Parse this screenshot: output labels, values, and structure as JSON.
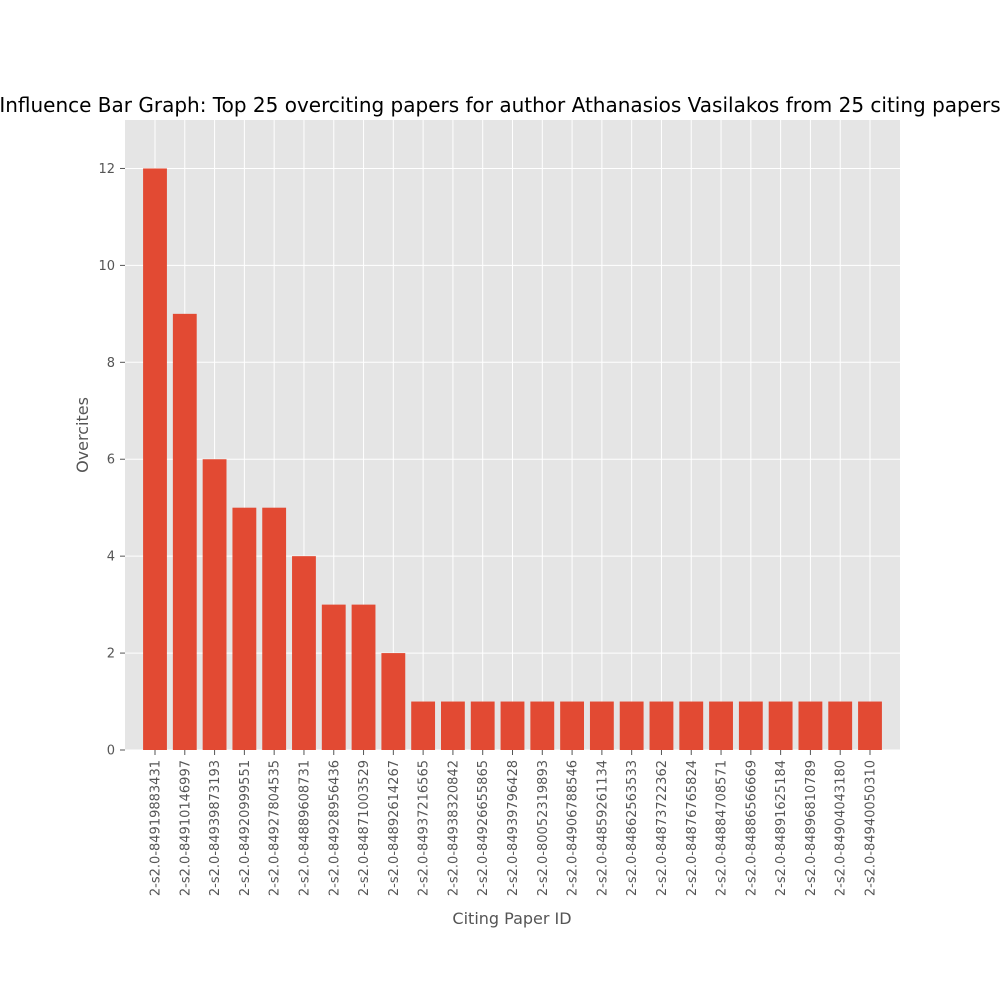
{
  "colors": {
    "bar": "#e24a33",
    "plot_background": "#e5e5e5",
    "grid": "#ffffff",
    "text": "#555555",
    "title": "#000000"
  },
  "chart_data": {
    "type": "bar",
    "title": "Influence Bar Graph: Top 25 overciting papers for author Athanasios Vasilakos from 25 citing papers",
    "xlabel": "Citing Paper ID",
    "ylabel": "Overcites",
    "ylim": [
      0,
      13
    ],
    "yticks": [
      0,
      2,
      4,
      6,
      8,
      10,
      12
    ],
    "grid": true,
    "categories": [
      "2-s2.0-84919883431",
      "2-s2.0-84910146997",
      "2-s2.0-84939873193",
      "2-s2.0-84920999551",
      "2-s2.0-84927804535",
      "2-s2.0-84889608731",
      "2-s2.0-84928956436",
      "2-s2.0-84871003529",
      "2-s2.0-84892614267",
      "2-s2.0-84937216565",
      "2-s2.0-84938320842",
      "2-s2.0-84926655865",
      "2-s2.0-84939796428",
      "2-s2.0-80052319893",
      "2-s2.0-84906788546",
      "2-s2.0-84859261134",
      "2-s2.0-84862563533",
      "2-s2.0-84873722362",
      "2-s2.0-84876765824",
      "2-s2.0-84884708571",
      "2-s2.0-84886566669",
      "2-s2.0-84891625184",
      "2-s2.0-84896810789",
      "2-s2.0-84904043180",
      "2-s2.0-84940050310"
    ],
    "values": [
      12,
      9,
      6,
      5,
      5,
      4,
      3,
      3,
      2,
      1,
      1,
      1,
      1,
      1,
      1,
      1,
      1,
      1,
      1,
      1,
      1,
      1,
      1,
      1,
      1
    ]
  }
}
